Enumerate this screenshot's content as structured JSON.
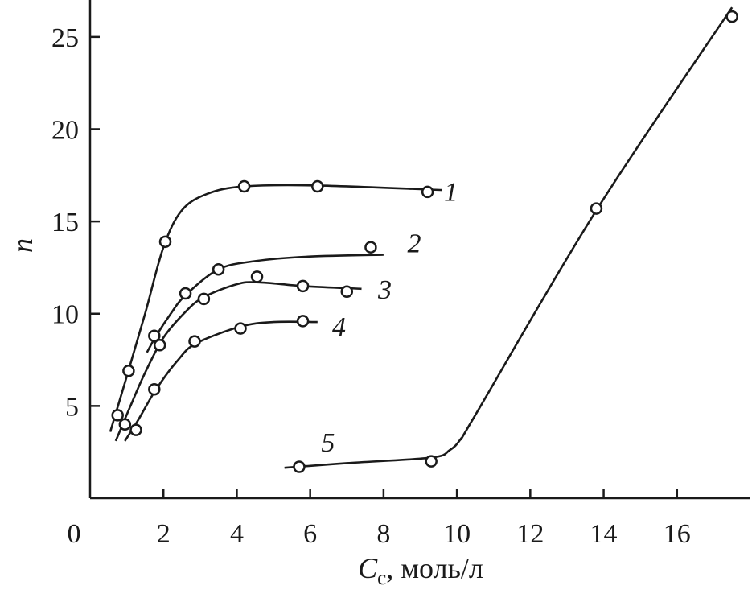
{
  "chart_data": {
    "type": "scatter",
    "xlabel_main": "C",
    "xlabel_sub": "c",
    "xlabel_rest": ", моль/л",
    "ylabel": "n",
    "xlim": [
      0,
      18
    ],
    "ylim": [
      0,
      27
    ],
    "x_ticks": [
      0,
      2,
      4,
      6,
      8,
      10,
      12,
      14,
      16
    ],
    "x_tick_labels": [
      "0",
      "2",
      "4",
      "6",
      "8",
      "10",
      "12",
      "14",
      "16"
    ],
    "y_ticks": [
      5,
      10,
      15,
      20,
      25
    ],
    "y_tick_labels": [
      "5",
      "10",
      "15",
      "20",
      "25"
    ],
    "grid": false,
    "series": [
      {
        "name": "1",
        "points": [
          [
            0.75,
            4.5
          ],
          [
            1.05,
            6.9
          ],
          [
            2.05,
            13.9
          ],
          [
            4.2,
            16.9
          ],
          [
            6.2,
            16.9
          ],
          [
            9.2,
            16.6
          ]
        ],
        "curve": [
          [
            0.55,
            3.6
          ],
          [
            1.0,
            6.6
          ],
          [
            1.5,
            10.0
          ],
          [
            2.0,
            13.6
          ],
          [
            2.5,
            15.6
          ],
          [
            3.2,
            16.5
          ],
          [
            4.2,
            16.9
          ],
          [
            6.2,
            16.95
          ],
          [
            9.6,
            16.7
          ]
        ],
        "label_at": [
          9.65,
          16.6
        ]
      },
      {
        "name": "2",
        "points": [
          [
            1.75,
            8.8
          ],
          [
            2.6,
            11.1
          ],
          [
            3.5,
            12.4
          ],
          [
            7.65,
            13.6
          ]
        ],
        "curve": [
          [
            1.55,
            7.9
          ],
          [
            1.8,
            8.8
          ],
          [
            2.2,
            10.0
          ],
          [
            2.6,
            11.0
          ],
          [
            3.5,
            12.4
          ],
          [
            4.5,
            12.85
          ],
          [
            6.0,
            13.1
          ],
          [
            8.0,
            13.2
          ]
        ],
        "label_at": [
          8.65,
          13.8
        ]
      },
      {
        "name": "3",
        "points": [
          [
            0.95,
            4.0
          ],
          [
            1.9,
            8.3
          ],
          [
            3.1,
            10.8
          ],
          [
            4.55,
            12.0
          ],
          [
            5.8,
            11.5
          ],
          [
            7.0,
            11.2
          ]
        ],
        "curve": [
          [
            0.7,
            3.1
          ],
          [
            1.1,
            5.0
          ],
          [
            1.5,
            6.8
          ],
          [
            2.0,
            8.7
          ],
          [
            2.6,
            10.1
          ],
          [
            3.1,
            10.9
          ],
          [
            4.0,
            11.6
          ],
          [
            4.6,
            11.7
          ],
          [
            5.8,
            11.5
          ],
          [
            7.4,
            11.35
          ]
        ],
        "label_at": [
          7.85,
          11.3
        ]
      },
      {
        "name": "4",
        "points": [
          [
            1.25,
            3.7
          ],
          [
            1.75,
            5.9
          ],
          [
            2.85,
            8.5
          ],
          [
            4.1,
            9.2
          ],
          [
            5.8,
            9.6
          ]
        ],
        "curve": [
          [
            0.95,
            3.1
          ],
          [
            1.3,
            4.2
          ],
          [
            1.8,
            5.9
          ],
          [
            2.4,
            7.5
          ],
          [
            2.9,
            8.4
          ],
          [
            4.1,
            9.3
          ],
          [
            5.0,
            9.55
          ],
          [
            6.2,
            9.55
          ]
        ],
        "label_at": [
          6.6,
          9.3
        ]
      },
      {
        "name": "5",
        "points": [
          [
            5.7,
            1.7
          ],
          [
            9.3,
            2.0
          ],
          [
            13.8,
            15.7
          ],
          [
            17.5,
            26.1
          ]
        ],
        "curve": [
          [
            5.3,
            1.65
          ],
          [
            7.0,
            1.9
          ],
          [
            9.3,
            2.2
          ],
          [
            9.8,
            2.6
          ],
          [
            10.1,
            3.2
          ],
          [
            10.5,
            4.5
          ],
          [
            13.8,
            15.6
          ],
          [
            17.5,
            26.6
          ]
        ],
        "label_at": [
          6.3,
          3.0
        ]
      }
    ]
  }
}
